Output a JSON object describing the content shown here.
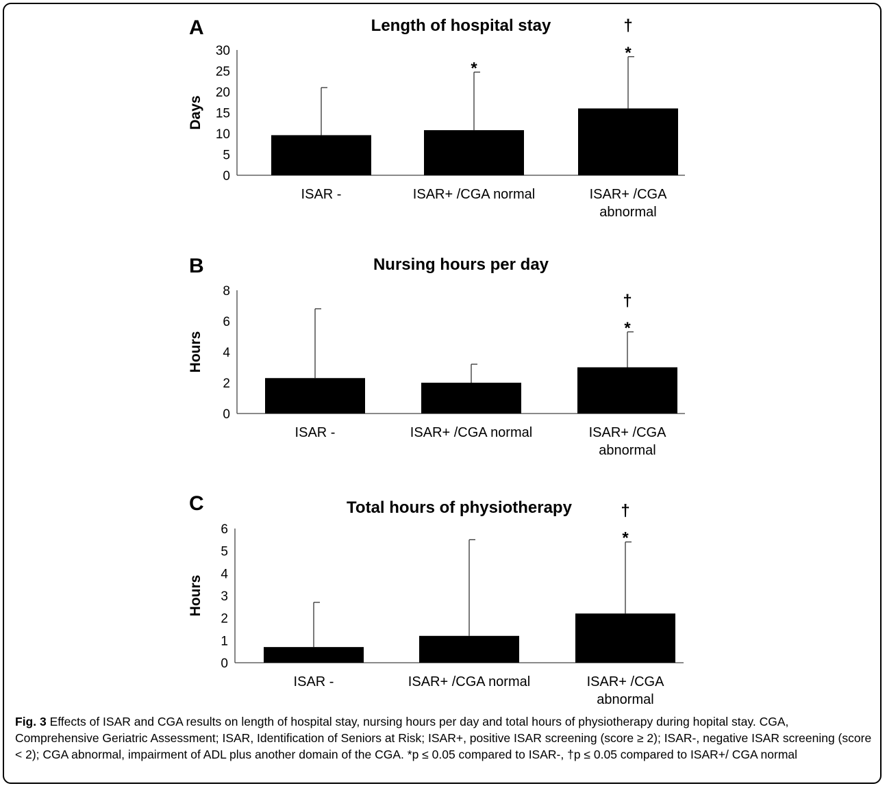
{
  "chart_data": [
    {
      "type": "bar",
      "panel": "A",
      "title": "Length of hospital stay",
      "ylabel": "Days",
      "xlabel": "",
      "ylim": [
        0,
        30
      ],
      "yticks": [
        0,
        5,
        10,
        15,
        20,
        25,
        30
      ],
      "categories": [
        [
          "ISAR -"
        ],
        [
          "ISAR+ /CGA normal"
        ],
        [
          "ISAR+ /CGA",
          "abnormal"
        ]
      ],
      "values": [
        9.6,
        10.8,
        16.0
      ],
      "error_upper": [
        21.0,
        24.7,
        28.4
      ],
      "annotations": [
        [],
        [
          "*"
        ],
        [
          "†",
          "*"
        ]
      ],
      "grid": false
    },
    {
      "type": "bar",
      "panel": "B",
      "title": "Nursing hours per day",
      "ylabel": "Hours",
      "xlabel": "",
      "ylim": [
        0,
        8
      ],
      "yticks": [
        0,
        2,
        4,
        6,
        8
      ],
      "categories": [
        [
          "ISAR -"
        ],
        [
          "ISAR+ /CGA normal"
        ],
        [
          "ISAR+ /CGA",
          "abnormal"
        ]
      ],
      "values": [
        2.3,
        2.0,
        3.0
      ],
      "error_upper": [
        6.8,
        3.2,
        5.3
      ],
      "annotations": [
        [],
        [],
        [
          "†",
          "*"
        ]
      ],
      "grid": false
    },
    {
      "type": "bar",
      "panel": "C",
      "title": "Total hours of physiotherapy",
      "ylabel": "Hours",
      "xlabel": "",
      "ylim": [
        0,
        6
      ],
      "yticks": [
        0,
        1,
        2,
        3,
        4,
        5,
        6
      ],
      "categories": [
        [
          "ISAR -"
        ],
        [
          "ISAR+ /CGA normal"
        ],
        [
          "ISAR+ /CGA",
          "abnormal"
        ]
      ],
      "values": [
        0.7,
        1.2,
        2.2
      ],
      "error_upper": [
        2.7,
        5.5,
        5.4
      ],
      "annotations": [
        [],
        [],
        [
          "†",
          "*"
        ]
      ],
      "grid": false
    }
  ],
  "caption": {
    "label": "Fig. 3",
    "text": " Effects of ISAR and CGA results on length of hospital stay, nursing hours per day and total hours of physiotherapy during hopital stay. CGA, Comprehensive Geriatric Assessment; ISAR, Identification of Seniors at Risk; ISAR+, positive ISAR screening (score ≥ 2); ISAR-, negative ISAR screening (score < 2); CGA abnormal, impairment of ADL plus another domain of the CGA. *p ≤ 0.05 compared to ISAR-, †p ≤ 0.05 compared to ISAR+/ CGA normal"
  }
}
